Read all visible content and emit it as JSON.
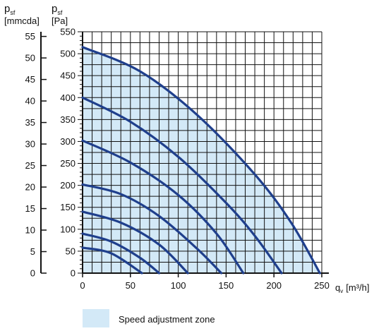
{
  "chart_data": {
    "type": "line",
    "left_axis": {
      "symbol": "p",
      "subscript": "sf",
      "unit": "[mmcda]",
      "ticks": [
        "55",
        "50",
        "45",
        "40",
        "35",
        "30",
        "25",
        "20",
        "15",
        "10",
        "5",
        "0"
      ],
      "range": [
        0,
        56.1
      ]
    },
    "right_axis": {
      "symbol": "p",
      "subscript": "sf",
      "unit": "[Pa]",
      "ticks": [
        "550",
        "500",
        "450",
        "400",
        "350",
        "300",
        "250",
        "200",
        "150",
        "100",
        "50",
        "0"
      ],
      "range": [
        0,
        550
      ]
    },
    "x_axis": {
      "symbol": "q",
      "subscript": "v",
      "unit": "[m³/h]",
      "ticks": [
        "0",
        "50",
        "100",
        "150",
        "200",
        "250"
      ],
      "range": [
        0,
        250
      ]
    },
    "ylim": [
      0,
      550
    ],
    "xlim": [
      0,
      250
    ],
    "grid": true,
    "zone_color": "#d3e9f7",
    "curve_color": "#1f3f8c",
    "legend": {
      "label": "Speed adjustment zone",
      "color": "#d3e9f7",
      "placement": "bottom"
    },
    "curves": [
      {
        "x": [
          0,
          60,
          120,
          180,
          218,
          248
        ],
        "y": [
          515,
          460,
          360,
          225,
          115,
          0
        ]
      },
      {
        "x": [
          0,
          50,
          100,
          150,
          180,
          208
        ],
        "y": [
          400,
          345,
          265,
          160,
          85,
          0
        ]
      },
      {
        "x": [
          0,
          50,
          100,
          140,
          168
        ],
        "y": [
          302,
          252,
          178,
          90,
          0
        ]
      },
      {
        "x": [
          0,
          40,
          80,
          120,
          145
        ],
        "y": [
          202,
          180,
          130,
          55,
          0
        ]
      },
      {
        "x": [
          0,
          40,
          80,
          110
        ],
        "y": [
          140,
          115,
          65,
          0
        ]
      },
      {
        "x": [
          0,
          30,
          60,
          80
        ],
        "y": [
          90,
          72,
          35,
          0
        ]
      },
      {
        "x": [
          0,
          30,
          62
        ],
        "y": [
          58,
          45,
          0
        ]
      }
    ]
  }
}
